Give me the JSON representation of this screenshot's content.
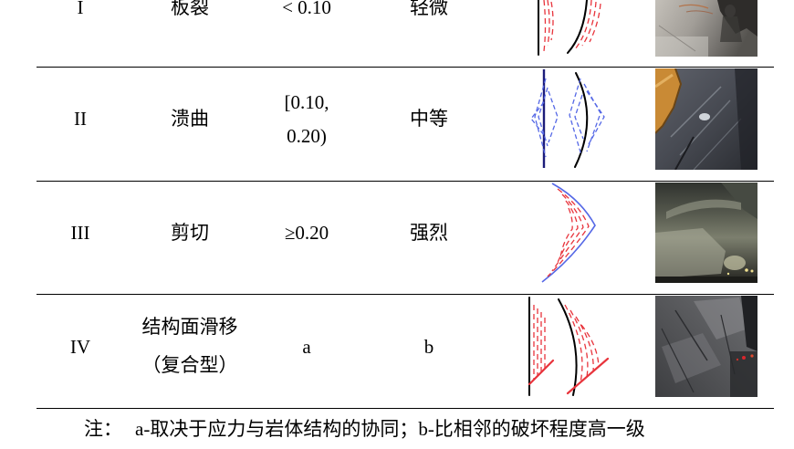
{
  "table": {
    "rows": [
      {
        "type": "I",
        "mode": "板裂",
        "ratio": "< 0.10",
        "intensity": "轻微"
      },
      {
        "type": "II",
        "mode": "溃曲",
        "ratio_line1": "[0.10,",
        "ratio_line2": "0.20)",
        "intensity": "中等"
      },
      {
        "type": "III",
        "mode": "剪切",
        "ratio": "≥0.20",
        "intensity": "强烈"
      },
      {
        "type": "IV",
        "mode_line1": "结构面滑移",
        "mode_line2": "（复合型）",
        "ratio": "a",
        "intensity": "b"
      }
    ]
  },
  "note": {
    "label": "注：",
    "text": "a-取决于应力与岩体结构的协同；b-比相邻的破坏程度高一级"
  },
  "colors": {
    "ink": "#000000",
    "red": "#e8343c",
    "blue": "#5568e6",
    "navy": "#1c1c7a"
  }
}
